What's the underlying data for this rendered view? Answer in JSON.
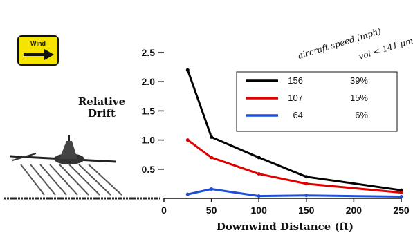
{
  "wind_badge": {
    "label": "Wind"
  },
  "chart_data": {
    "type": "line",
    "xlabel": "Downwind Distance (ft)",
    "ylabel": "Relative Drift",
    "xlim": [
      0,
      250
    ],
    "ylim": [
      0,
      2.5
    ],
    "xticks": [
      "0",
      "50",
      "100",
      "150",
      "200",
      "250"
    ],
    "yticks": [
      "0.5",
      "1.0",
      "1.5",
      "2.0",
      "2.5"
    ],
    "highlight_ytick": {
      "label": "1.0",
      "color": "#e00000"
    },
    "legend_headers": [
      "aircraft speed (mph)",
      "vol < 141 µm"
    ],
    "legend_placement": "top-right",
    "grid": false,
    "series": [
      {
        "name": "156",
        "vol_pct": "39%",
        "color": "#000000",
        "x": [
          25,
          50,
          100,
          150,
          250
        ],
        "y": [
          2.2,
          1.05,
          0.7,
          0.37,
          0.14
        ]
      },
      {
        "name": "107",
        "vol_pct": "15%",
        "color": "#e00000",
        "x": [
          25,
          50,
          100,
          150,
          250
        ],
        "y": [
          1.0,
          0.7,
          0.42,
          0.25,
          0.1
        ]
      },
      {
        "name": "64",
        "vol_pct": "6%",
        "color": "#1f4fd8",
        "x": [
          25,
          50,
          100,
          150,
          250
        ],
        "y": [
          0.07,
          0.16,
          0.04,
          0.05,
          0.03
        ]
      }
    ]
  }
}
